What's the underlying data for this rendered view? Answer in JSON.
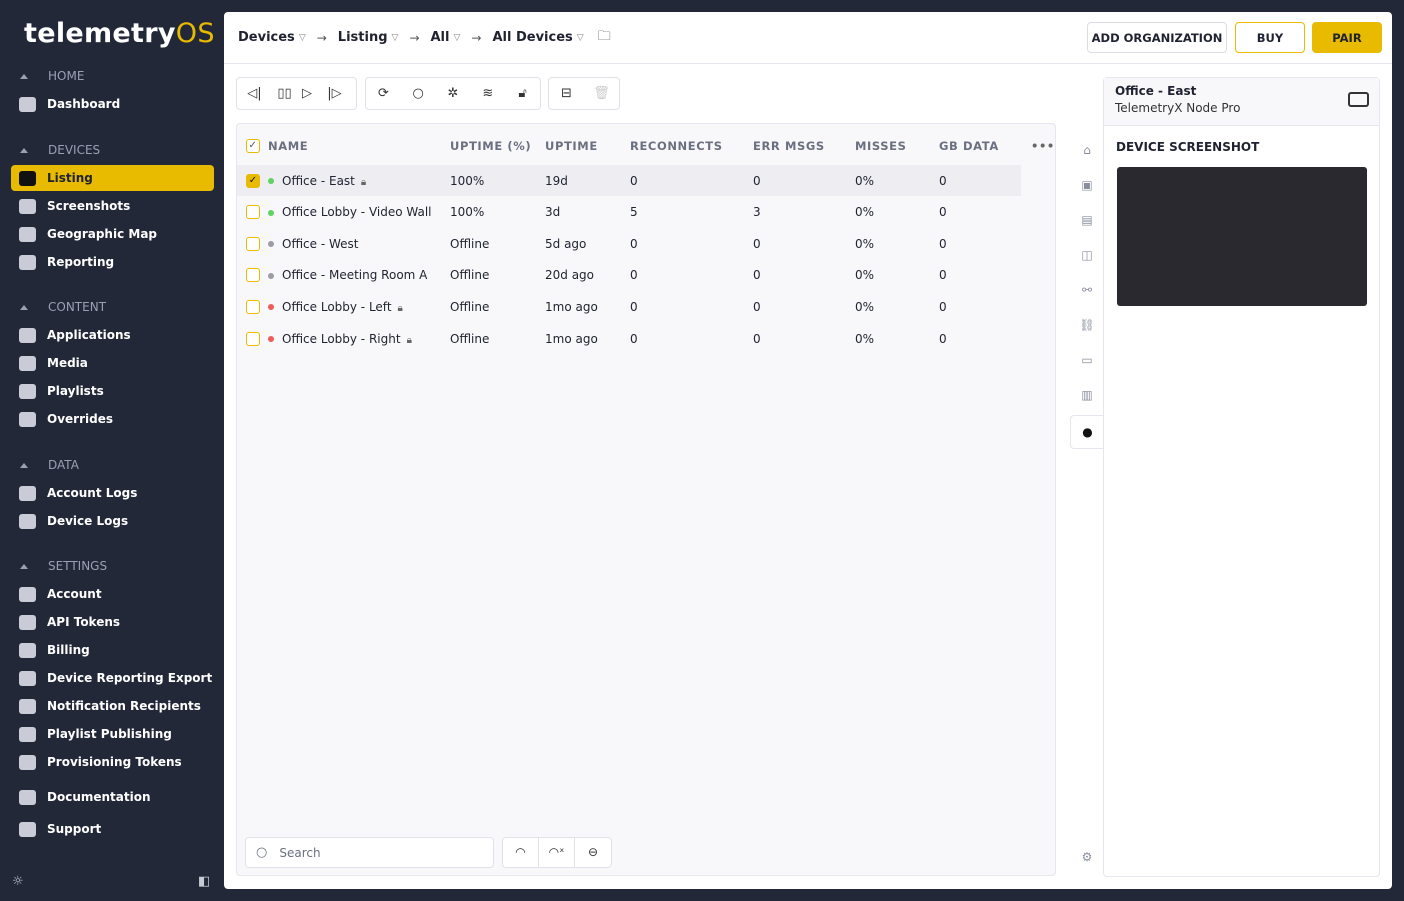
{
  "brand": {
    "name": "telemetry",
    "suffix": "OS",
    "accent": "#e8bb00"
  },
  "sidebar": {
    "sections": [
      {
        "title": "HOME",
        "items": [
          {
            "label": "Dashboard",
            "icon": "dashboard-icon"
          }
        ]
      },
      {
        "title": "DEVICES",
        "items": [
          {
            "label": "Listing",
            "icon": "monitor-icon",
            "active": true
          },
          {
            "label": "Screenshots",
            "icon": "grid-icon"
          },
          {
            "label": "Geographic Map",
            "icon": "map-pin-icon"
          },
          {
            "label": "Reporting",
            "icon": "bar-chart-icon"
          }
        ]
      },
      {
        "title": "CONTENT",
        "items": [
          {
            "label": "Applications",
            "icon": "cube-icon"
          },
          {
            "label": "Media",
            "icon": "image-icon"
          },
          {
            "label": "Playlists",
            "icon": "playlist-icon"
          },
          {
            "label": "Overrides",
            "icon": "warning-icon"
          }
        ]
      },
      {
        "title": "DATA",
        "items": [
          {
            "label": "Account Logs",
            "icon": "account-log-icon"
          },
          {
            "label": "Device Logs",
            "icon": "device-log-icon"
          }
        ]
      },
      {
        "title": "SETTINGS",
        "items": [
          {
            "label": "Account",
            "icon": "account-icon"
          },
          {
            "label": "API Tokens",
            "icon": "api-icon"
          },
          {
            "label": "Billing",
            "icon": "billing-icon"
          },
          {
            "label": "Device Reporting Export",
            "icon": "download-icon"
          },
          {
            "label": "Notification Recipients",
            "icon": "bell-icon"
          },
          {
            "label": "Playlist Publishing",
            "icon": "checklist-icon"
          },
          {
            "label": "Provisioning Tokens",
            "icon": "token-icon"
          }
        ]
      }
    ],
    "bottom": [
      {
        "label": "Documentation",
        "icon": "book-icon"
      },
      {
        "label": "Support",
        "icon": "chat-icon"
      }
    ]
  },
  "header": {
    "breadcrumbs": [
      "Devices",
      "Listing",
      "All",
      "All Devices"
    ],
    "add_org": "ADD ORGANIZATION",
    "buy": "BUY",
    "pair": "PAIR"
  },
  "table": {
    "columns": [
      "NAME",
      "UPTIME (%)",
      "UPTIME",
      "RECONNECTS",
      "ERR MSGS",
      "MISSES",
      "GB DATA"
    ],
    "rows": [
      {
        "name": "Office - East",
        "status": "online",
        "locked": true,
        "selected": true,
        "uptime_pct": "100%",
        "uptime": "19d",
        "reconnects": "0",
        "err": "0",
        "misses": "0%",
        "gb": "0"
      },
      {
        "name": "Office Lobby - Video Wall",
        "status": "online",
        "locked": false,
        "selected": false,
        "uptime_pct": "100%",
        "uptime": "3d",
        "reconnects": "5",
        "err": "3",
        "misses": "0%",
        "gb": "0"
      },
      {
        "name": "Office - West",
        "status": "offline",
        "locked": false,
        "selected": false,
        "uptime_pct": "Offline",
        "uptime": "5d ago",
        "reconnects": "0",
        "err": "0",
        "misses": "0%",
        "gb": "0"
      },
      {
        "name": "Office - Meeting Room A",
        "status": "offline",
        "locked": false,
        "selected": false,
        "uptime_pct": "Offline",
        "uptime": "20d ago",
        "reconnects": "0",
        "err": "0",
        "misses": "0%",
        "gb": "0"
      },
      {
        "name": "Office Lobby - Left",
        "status": "error",
        "locked": true,
        "selected": false,
        "uptime_pct": "Offline",
        "uptime": "1mo ago",
        "reconnects": "0",
        "err": "0",
        "misses": "0%",
        "gb": "0"
      },
      {
        "name": "Office Lobby - Right",
        "status": "error",
        "locked": true,
        "selected": false,
        "uptime_pct": "Offline",
        "uptime": "1mo ago",
        "reconnects": "0",
        "err": "0",
        "misses": "0%",
        "gb": "0"
      }
    ],
    "status_colors": {
      "online": "#5fd35f",
      "offline": "#9a9ca6",
      "error": "#ef5b5b"
    }
  },
  "search": {
    "placeholder": "Search"
  },
  "detail": {
    "name": "Office - East",
    "model": "TelemetryX Node Pro",
    "section": "DEVICE SCREENSHOT"
  }
}
